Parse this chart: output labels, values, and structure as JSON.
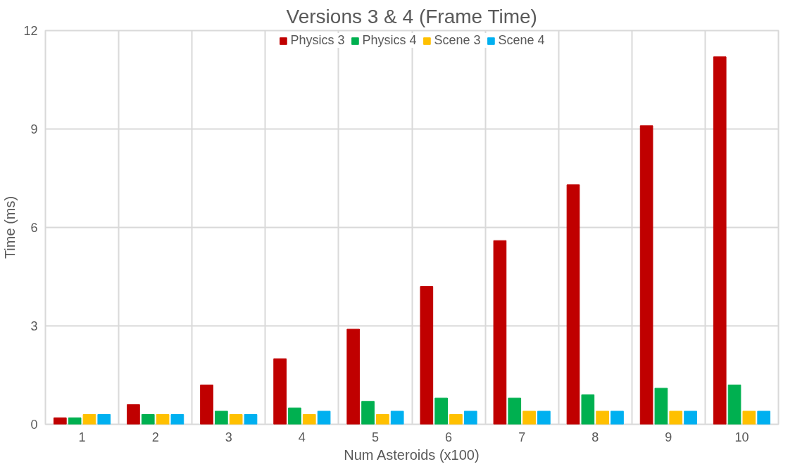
{
  "chart_data": {
    "type": "bar",
    "title": "Versions 3 & 4 (Frame Time)",
    "xlabel": "Num Asteroids (x100)",
    "ylabel": "Time (ms)",
    "categories": [
      "1",
      "2",
      "3",
      "4",
      "5",
      "6",
      "7",
      "8",
      "9",
      "10"
    ],
    "series": [
      {
        "name": "Physics 3",
        "color": "#c00000",
        "values": [
          0.2,
          0.6,
          1.2,
          2.0,
          2.9,
          4.2,
          5.6,
          7.3,
          9.1,
          11.2
        ]
      },
      {
        "name": "Physics 4",
        "color": "#00b050",
        "values": [
          0.2,
          0.3,
          0.4,
          0.5,
          0.7,
          0.8,
          0.8,
          0.9,
          1.1,
          1.2
        ]
      },
      {
        "name": "Scene 3",
        "color": "#ffc000",
        "values": [
          0.3,
          0.3,
          0.3,
          0.3,
          0.3,
          0.3,
          0.4,
          0.4,
          0.4,
          0.4
        ]
      },
      {
        "name": "Scene 4",
        "color": "#00b0f0",
        "values": [
          0.3,
          0.3,
          0.3,
          0.4,
          0.4,
          0.4,
          0.4,
          0.4,
          0.4,
          0.4
        ]
      }
    ],
    "ylim": [
      0,
      12
    ],
    "yticks": [
      0,
      3,
      6,
      9,
      12
    ],
    "grid": true,
    "legend": "top"
  }
}
